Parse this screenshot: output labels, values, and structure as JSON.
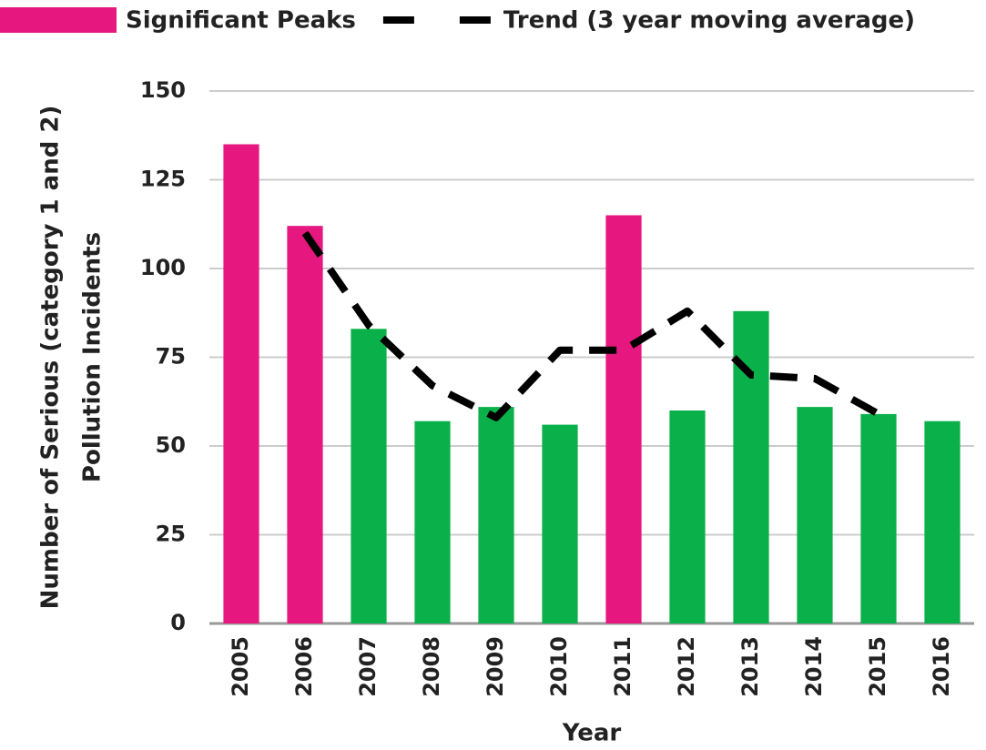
{
  "chart_data": {
    "type": "bar",
    "xlabel": "Year",
    "ylabel": [
      "Number of Serious (category 1 and 2)",
      "Pollution Incidents"
    ],
    "categories": [
      "2005",
      "2006",
      "2007",
      "2008",
      "2009",
      "2010",
      "2011",
      "2012",
      "2013",
      "2014",
      "2015",
      "2016"
    ],
    "series": [
      {
        "name": "Significant Peaks",
        "type": "bar",
        "color": "#e6177e",
        "values": [
          135,
          112,
          83,
          57,
          61,
          56,
          115,
          60,
          88,
          61,
          59,
          57
        ],
        "colors": [
          "#e6177e",
          "#e6177e",
          "#0ab04a",
          "#0ab04a",
          "#0ab04a",
          "#0ab04a",
          "#e6177e",
          "#0ab04a",
          "#0ab04a",
          "#0ab04a",
          "#0ab04a",
          "#0ab04a"
        ]
      },
      {
        "name": "Trend (3 year moving average)",
        "type": "line",
        "color": "#000000",
        "values": [
          null,
          110,
          84,
          67,
          58,
          77,
          77,
          88,
          70,
          69,
          59,
          null
        ]
      }
    ],
    "ylim": [
      0,
      150
    ],
    "yticks": [
      0,
      25,
      50,
      75,
      100,
      125,
      150
    ],
    "grid": true
  }
}
